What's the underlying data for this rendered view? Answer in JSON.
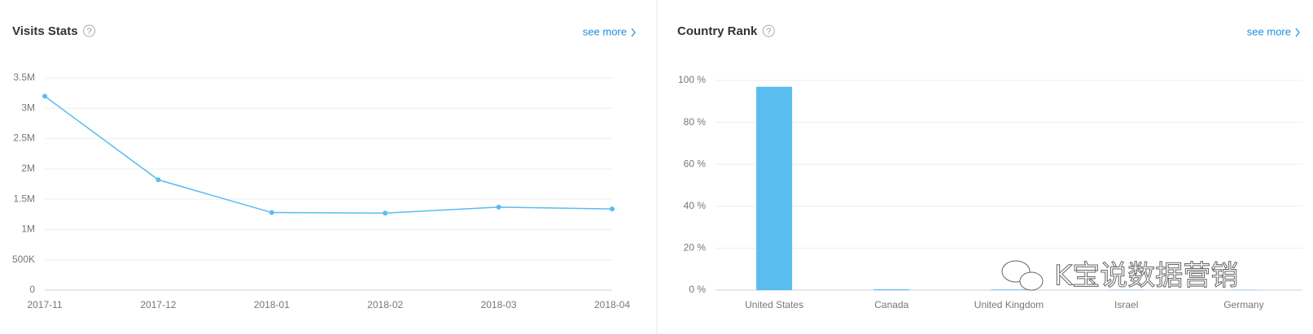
{
  "chart_data": [
    {
      "type": "line",
      "title": "Visits Stats",
      "help": "?",
      "link": "see more",
      "categories": [
        "2017-11",
        "2017-12",
        "2018-01",
        "2018-02",
        "2018-03",
        "2018-04"
      ],
      "values": [
        3200000,
        1820000,
        1280000,
        1270000,
        1370000,
        1340000
      ],
      "color": "#5bbcef",
      "ylim": [
        0,
        3500000
      ],
      "yticks": [
        0,
        {
          "value": 500000,
          "label": "500K"
        },
        {
          "value": 1000000,
          "label": "1M"
        },
        {
          "value": 1500000,
          "label": "1.5M"
        },
        {
          "value": 2000000,
          "label": "2M"
        },
        {
          "value": 2500000,
          "label": "2.5M"
        },
        {
          "value": 3000000,
          "label": "3M"
        },
        {
          "value": 3500000,
          "label": "3.5M"
        }
      ],
      "grid": true
    },
    {
      "type": "bar",
      "title": "Country Rank",
      "help": "?",
      "link": "see more",
      "categories": [
        "United States",
        "Canada",
        "United Kingdom",
        "Israel",
        "Germany"
      ],
      "values": [
        97,
        0.4,
        0.3,
        0.1,
        0.1
      ],
      "color": "#5bbcef",
      "ylim": [
        0,
        100
      ],
      "yticks": [
        {
          "value": 0,
          "label": "0 %"
        },
        {
          "value": 20,
          "label": "20 %"
        },
        {
          "value": 40,
          "label": "40 %"
        },
        {
          "value": 60,
          "label": "60 %"
        },
        {
          "value": 80,
          "label": "80 %"
        },
        {
          "value": 100,
          "label": "100 %"
        }
      ],
      "grid": true
    }
  ],
  "watermark": "K宝说数据营销"
}
